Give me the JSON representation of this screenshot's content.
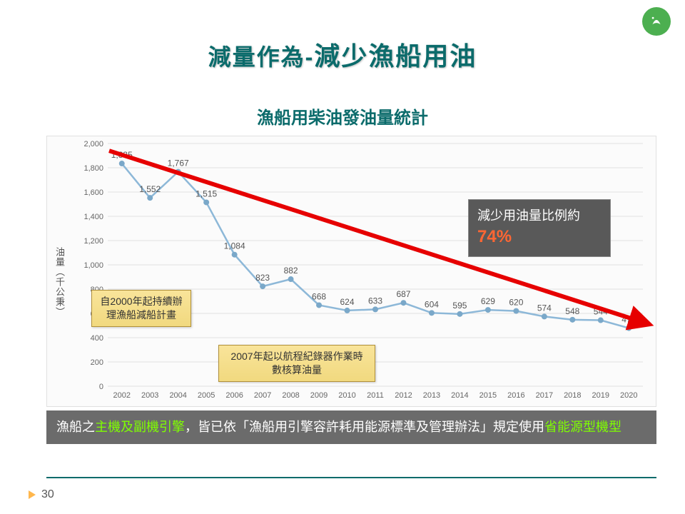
{
  "title_small": "減量作為",
  "title_sep": "-",
  "title_big": "減少漁船用油",
  "subtitle": "漁船用柴油發油量統計",
  "ylabel": "油量（千公秉）",
  "chart": {
    "type": "line",
    "background_color": "#fbfbfb",
    "grid_color": "#e0e0e0",
    "line_color": "#8db8d8",
    "marker_color": "#7aa8c9",
    "marker_size": 4,
    "ylim": [
      0,
      2000
    ],
    "ytick_step": 200,
    "yticks": [
      0,
      200,
      400,
      600,
      800,
      1000,
      1200,
      1400,
      1600,
      1800,
      2000
    ],
    "yticklabels": [
      "0",
      "200",
      "400",
      "600",
      "800",
      "1,000",
      "1,200",
      "1,400",
      "1,600",
      "1,800",
      "2,000"
    ],
    "years": [
      "2002",
      "2003",
      "2004",
      "2005",
      "2006",
      "2007",
      "2008",
      "2009",
      "2010",
      "2011",
      "2012",
      "2013",
      "2014",
      "2015",
      "2016",
      "2017",
      "2018",
      "2019",
      "2020"
    ],
    "values": [
      1835,
      1552,
      1767,
      1515,
      1084,
      823,
      882,
      668,
      624,
      633,
      687,
      604,
      595,
      629,
      620,
      574,
      548,
      544,
      479
    ],
    "value_labels": [
      "1,835",
      "1,552",
      "1,767",
      "1,515",
      "1,084",
      "823",
      "882",
      "668",
      "624",
      "633",
      "687",
      "604",
      "595",
      "629",
      "620",
      "574",
      "548",
      "544",
      "479"
    ],
    "tick_fontsize": 11,
    "label_fontsize": 12,
    "trend_color": "#e60000",
    "trend_start_x": 0.01,
    "trend_start_y": 1940,
    "trend_end_x": 18.6,
    "trend_end_y": 520
  },
  "callout1": "自2000年起持續辦理漁船減船計畫",
  "callout2": "2007年起以航程紀錄器作業時數核算油量",
  "redbox_prefix": "減少用油量比例約",
  "redbox_pct": "74%",
  "footnote_p1": "漁船之",
  "footnote_hl1": "主機及副機引擎",
  "footnote_p2": "，皆已依「漁船用引擎容許耗用能源標準及管理辦法」規定使用",
  "footnote_hl2": "省能源型機型",
  "page_number": "30",
  "callout_bg": "#f6e08b",
  "callout_border": "#b0903a",
  "redbox_bg": "#595959",
  "redbox_text": "#ffffff",
  "redbox_pct_color": "#ff6633",
  "footnote_bg": "#6b6b6b",
  "footnote_hl_color": "#7fff00"
}
